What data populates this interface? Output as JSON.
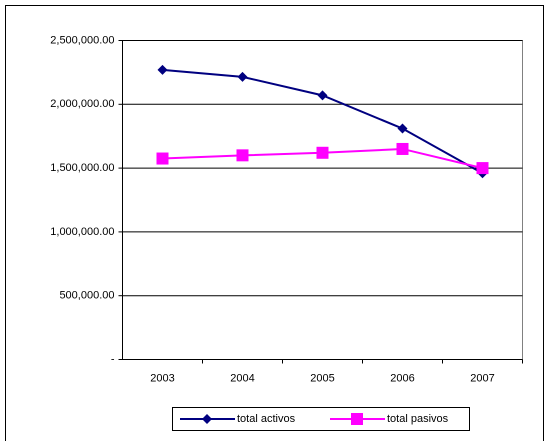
{
  "chart_data": {
    "type": "line",
    "categories": [
      "2003",
      "2004",
      "2005",
      "2006",
      "2007"
    ],
    "series": [
      {
        "name": "total activos",
        "color": "#000080",
        "marker": "diamond",
        "values": [
          2270000,
          2215000,
          2070000,
          1810000,
          1460000
        ]
      },
      {
        "name": "total pasivos",
        "color": "#ff00ff",
        "marker": "square",
        "values": [
          1575000,
          1600000,
          1620000,
          1650000,
          1500000
        ]
      }
    ],
    "ylim": [
      0,
      2500000
    ],
    "yticks": [
      {
        "value": 0,
        "label": "-"
      },
      {
        "value": 500000,
        "label": "500,000.00"
      },
      {
        "value": 1000000,
        "label": "1,000,000.00"
      },
      {
        "value": 1500000,
        "label": "1,500,000.00"
      },
      {
        "value": 2000000,
        "label": "2,000,000.00"
      },
      {
        "value": 2500000,
        "label": "2,500,000.00"
      }
    ],
    "grid": true,
    "legend": "bottom"
  }
}
